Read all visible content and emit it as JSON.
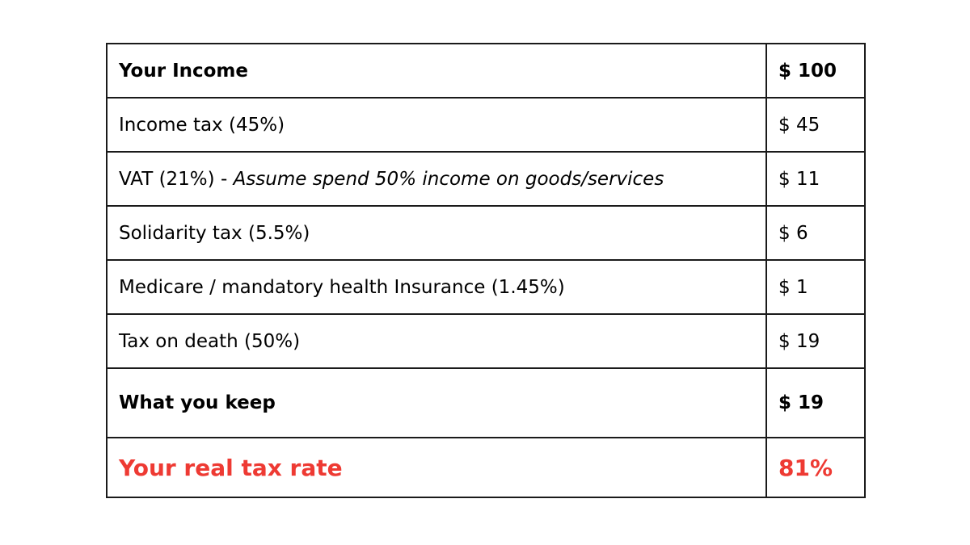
{
  "table": {
    "rows": [
      {
        "label": "Your Income",
        "note": "",
        "amount": "$  100",
        "style": "bold"
      },
      {
        "label": "Income tax (45%)",
        "note": "",
        "amount": "$ 45",
        "style": "normal"
      },
      {
        "label": "VAT (21%) - ",
        "note": "Assume spend 50% income on goods/services",
        "amount": "$ 11",
        "style": "normal"
      },
      {
        "label": "Solidarity tax (5.5%)",
        "note": "",
        "amount": "$ 6",
        "style": "normal"
      },
      {
        "label": "Medicare / mandatory health Insurance (1.45%)",
        "note": "",
        "amount": "$ 1",
        "style": "normal"
      },
      {
        "label": "Tax on death (50%)",
        "note": "",
        "amount": "$ 19",
        "style": "normal"
      },
      {
        "label": "What you keep",
        "note": "",
        "amount": "$ 19",
        "style": "bold"
      },
      {
        "label": "Your real tax rate",
        "note": "",
        "amount": "81%",
        "style": "highlight"
      }
    ]
  },
  "colors": {
    "highlight": "#ee3a33",
    "border": "#1a1a1a",
    "text": "#000000"
  }
}
